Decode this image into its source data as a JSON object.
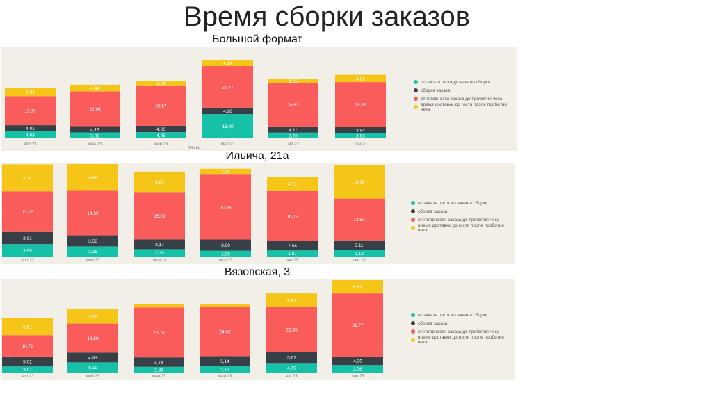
{
  "slide": {
    "title": "Время сборки заказов"
  },
  "chart_data": [
    {
      "type": "bar",
      "stacked": true,
      "title": "Большой формат",
      "xlabel": "Месяц",
      "categories": [
        "апр.23",
        "май.23",
        "июн.23",
        "июл.23",
        "авг.23",
        "сен.23"
      ],
      "legend_position": "right",
      "series": [
        {
          "name": "от заказа гостя до начала сборки",
          "values": [
            4.68,
            3.89,
            4.06,
            16.0,
            3.78,
            3.63
          ]
        },
        {
          "name": "сборка заказа",
          "values": [
            4.01,
            4.13,
            4.28,
            4.28,
            4.11,
            3.94
          ]
        },
        {
          "name": "от готовности заказа до пробития чека",
          "values": [
            19.17,
            22.96,
            26.57,
            27.47,
            28.63,
            29.58
          ]
        },
        {
          "name": "время доставки до гостя после пробития чека",
          "values": [
            5.64,
            4.44,
            3.04,
            4.14,
            2.85,
            4.82
          ]
        }
      ]
    },
    {
      "type": "bar",
      "stacked": true,
      "title": "Ильича, 21а",
      "categories": [
        "апр.23",
        "май.23",
        "июн.23",
        "июл.23",
        "авг.23",
        "сен.23"
      ],
      "legend_position": "right",
      "series": [
        {
          "name": "от заказа гостя до начала сборки",
          "values": [
            3.99,
            3.28,
            2.38,
            1.9,
            1.97,
            2.12
          ]
        },
        {
          "name": "сборка заказа",
          "values": [
            3.91,
            3.56,
            3.17,
            3.6,
            2.98,
            3.11
          ]
        },
        {
          "name": "от готовности заказа до пробития чека",
          "values": [
            13.17,
            14.39,
            15.29,
            20.98,
            16.19,
            13.5
          ]
        },
        {
          "name": "время доставки до гостя после пробития чека",
          "values": [
            8.74,
            8.66,
            6.62,
            1.89,
            4.71,
            10.78
          ]
        }
      ]
    },
    {
      "type": "bar",
      "stacked": true,
      "title": "Вязовская, 3",
      "categories": [
        "апр.23",
        "май.23",
        "июн.23",
        "июл.23",
        "авг.23",
        "сен.23"
      ],
      "legend_position": "right",
      "series": [
        {
          "name": "от заказа гостя до начала сборки",
          "values": [
            3.07,
            5.11,
            2.89,
            3.12,
            4.79,
            3.76
          ]
        },
        {
          "name": "сборка заказа",
          "values": [
            5.02,
            4.93,
            4.74,
            5.14,
            5.67,
            4.3
          ]
        },
        {
          "name": "от готовности заказа до пробития чека",
          "values": [
            10.71,
            14.59,
            25.16,
            24.92,
            22.45,
            31.77
          ]
        },
        {
          "name": "время доставки до гостя после пробития чека",
          "values": [
            8.51,
            7.52,
            1.76,
            1.27,
            6.92,
            6.69
          ]
        }
      ]
    }
  ],
  "colors": {
    "teal": "#16c2a7",
    "dark": "#374046",
    "red": "#fa5b5b",
    "yellow": "#f5c518"
  },
  "hidden_label_threshold": 2.0
}
